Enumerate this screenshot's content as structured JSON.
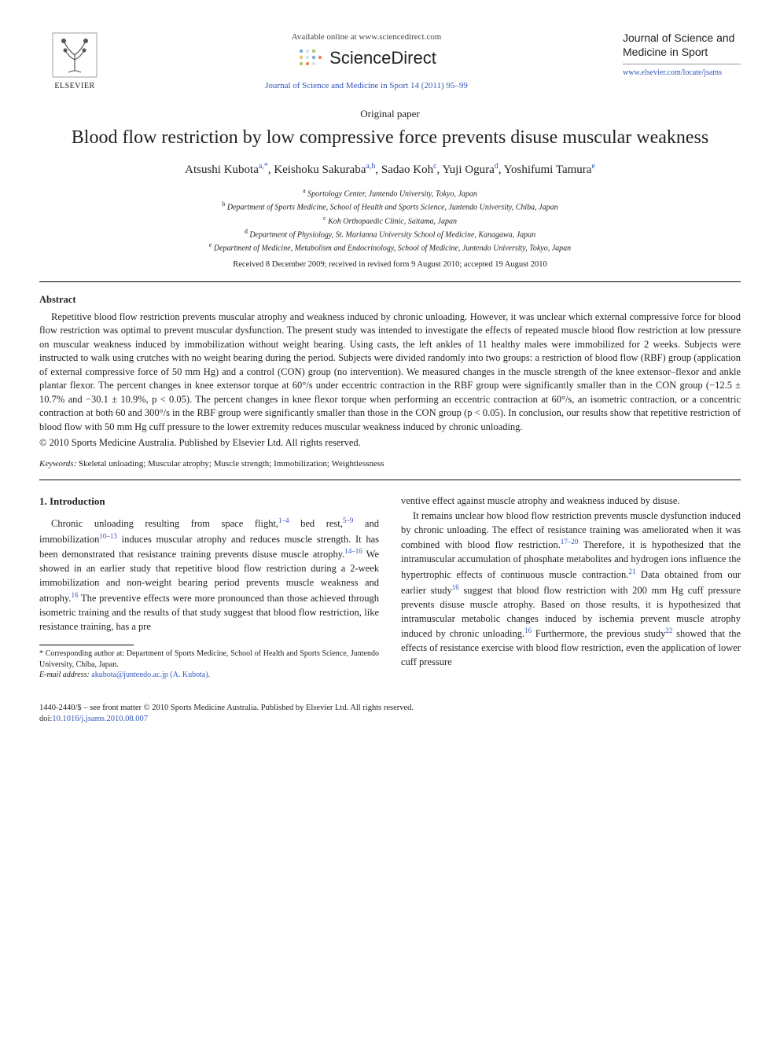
{
  "header": {
    "elsevier_label": "ELSEVIER",
    "available_line": "Available online at www.sciencedirect.com",
    "scidirect_text": "ScienceDirect",
    "journal_citation": "Journal of Science and Medicine in Sport 14 (2011) 95–99",
    "journal_name": "Journal of Science and Medicine in Sport",
    "journal_url": "www.elsevier.com/locate/jsams"
  },
  "paper_type": "Original paper",
  "title": "Blood flow restriction by low compressive force prevents disuse muscular weakness",
  "authors": [
    {
      "name": "Atsushi Kubota",
      "aff": "a,*"
    },
    {
      "name": "Keishoku Sakuraba",
      "aff": "a,b"
    },
    {
      "name": "Sadao Koh",
      "aff": "c"
    },
    {
      "name": "Yuji Ogura",
      "aff": "d"
    },
    {
      "name": "Yoshifumi Tamura",
      "aff": "e"
    }
  ],
  "affiliations": [
    {
      "sup": "a",
      "text": "Sportology Center, Juntendo University, Tokyo, Japan"
    },
    {
      "sup": "b",
      "text": "Department of Sports Medicine, School of Health and Sports Science, Juntendo University, Chiba, Japan"
    },
    {
      "sup": "c",
      "text": "Koh Orthopaedic Clinic, Saitama, Japan"
    },
    {
      "sup": "d",
      "text": "Department of Physiology, St. Marianna University School of Medicine, Kanagawa, Japan"
    },
    {
      "sup": "e",
      "text": "Department of Medicine, Metabolism and Endocrinology, School of Medicine, Juntendo University, Tokyo, Japan"
    }
  ],
  "dates": "Received 8 December 2009; received in revised form 9 August 2010; accepted 19 August 2010",
  "abstract": {
    "label": "Abstract",
    "body": "Repetitive blood flow restriction prevents muscular atrophy and weakness induced by chronic unloading. However, it was unclear which external compressive force for blood flow restriction was optimal to prevent muscular dysfunction. The present study was intended to investigate the effects of repeated muscle blood flow restriction at low pressure on muscular weakness induced by immobilization without weight bearing. Using casts, the left ankles of 11 healthy males were immobilized for 2 weeks. Subjects were instructed to walk using crutches with no weight bearing during the period. Subjects were divided randomly into two groups: a restriction of blood flow (RBF) group (application of external compressive force of 50 mm Hg) and a control (CON) group (no intervention). We measured changes in the muscle strength of the knee extensor–flexor and ankle plantar flexor. The percent changes in knee extensor torque at 60°/s under eccentric contraction in the RBF group were significantly smaller than in the CON group (−12.5 ± 10.7% and −30.1 ± 10.9%, p < 0.05). The percent changes in knee flexor torque when performing an eccentric contraction at 60°/s, an isometric contraction, or a concentric contraction at both 60 and 300°/s in the RBF group were significantly smaller than those in the CON group (p < 0.05). In conclusion, our results show that repetitive restriction of blood flow with 50 mm Hg cuff pressure to the lower extremity reduces muscular weakness induced by chronic unloading.",
    "copyright": "© 2010 Sports Medicine Australia. Published by Elsevier Ltd. All rights reserved."
  },
  "keywords": {
    "label": "Keywords:",
    "list": "Skeletal unloading; Muscular atrophy; Muscle strength; Immobilization; Weightlessness"
  },
  "intro": {
    "heading": "1.  Introduction",
    "p1a": "Chronic unloading resulting from space flight,",
    "p1a_ref": "1–4",
    "p1b": " bed rest,",
    "p1b_ref": "5–9",
    "p1c": " and immobilization",
    "p1c_ref": "10–13",
    "p1d": " induces muscular atrophy and reduces muscle strength. It has been demonstrated that resistance training prevents disuse muscle atrophy.",
    "p1d_ref": "14–16",
    "p1e": " We showed in an earlier study that repetitive blood flow restriction during a 2-week immobilization and non-weight bearing period prevents muscle weakness and atrophy.",
    "p1e_ref": "16",
    "p1f": " The preventive effects were more pronounced than those achieved through isometric training and the results of that study suggest that blood flow restriction, like resistance training, has a pre",
    "p2a": "ventive effect against muscle atrophy and weakness induced by disuse.",
    "p3a": "It remains unclear how blood flow restriction prevents muscle dysfunction induced by chronic unloading. The effect of resistance training was ameliorated when it was combined with blood flow restriction.",
    "p3a_ref": "17–20",
    "p3b": " Therefore, it is hypothesized that the intramuscular accumulation of phosphate metabolites and hydrogen ions influence the hypertrophic effects of continuous muscle contraction.",
    "p3b_ref": "21",
    "p3c": " Data obtained from our earlier study",
    "p3c_ref": "16",
    "p3d": " suggest that blood flow restriction with 200 mm Hg cuff pressure prevents disuse muscle atrophy. Based on those results, it is hypothesized that intramuscular metabolic changes induced by ischemia prevent muscle atrophy induced by chronic unloading.",
    "p3d_ref": "16",
    "p3e": " Furthermore, the previous study",
    "p3e_ref": "22",
    "p3f": " showed that the effects of resistance exercise with blood flow restriction, even the application of lower cuff pressure"
  },
  "footnote": {
    "corr": "* Corresponding author at: Department of Sports Medicine, School of Health and Sports Science, Juntendo University, Chiba, Japan.",
    "email_label": "E-mail address:",
    "email": "akubota@juntendo.ac.jp (A. Kubota)."
  },
  "footer": {
    "issn": "1440-2440/$ – see front matter © 2010 Sports Medicine Australia. Published by Elsevier Ltd. All rights reserved.",
    "doi_label": "doi:",
    "doi": "10.1016/j.jsams.2010.08.007"
  },
  "colors": {
    "link": "#3355bb",
    "text": "#222222",
    "elsevier_orange": "#ee7d00"
  }
}
